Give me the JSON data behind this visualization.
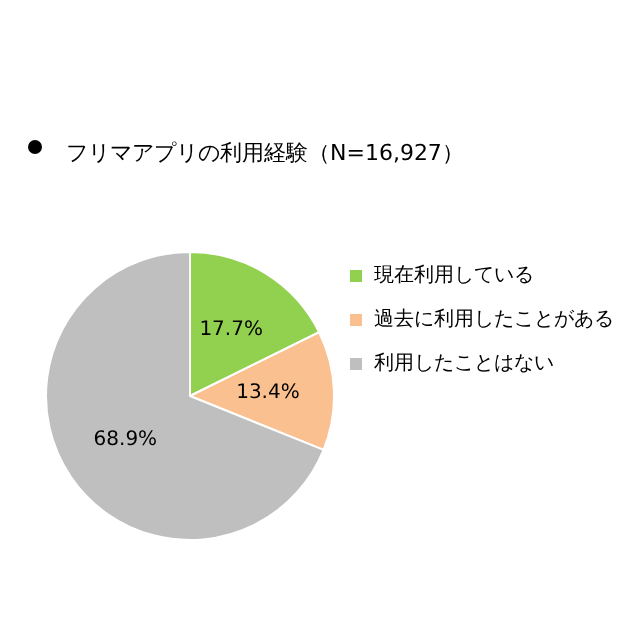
{
  "chart_data": {
    "type": "pie",
    "title": "フリマアプリの利用経験（N=16,927）",
    "categories": [
      "現在利用している",
      "過去に利用したことがある",
      "利用したことはない"
    ],
    "values": [
      17.7,
      13.4,
      68.9
    ],
    "value_labels": [
      "17.7%",
      "13.4%",
      "68.9%"
    ],
    "colors": [
      "#92d050",
      "#fac090",
      "#bfbfbf"
    ],
    "legend": "right"
  }
}
